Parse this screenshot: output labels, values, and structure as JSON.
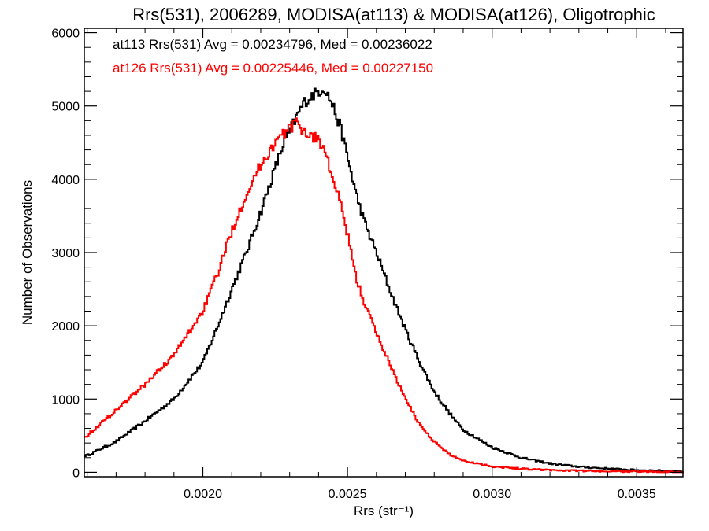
{
  "chart_data": {
    "type": "line",
    "step": true,
    "title": "Rrs(531), 2006289, MODISA(at113) & MODISA(at126), Oligotrophic",
    "xlabel": "Rrs (str⁻¹)",
    "ylabel": "Number of Observations",
    "xlim": [
      0.00159,
      0.00366
    ],
    "ylim": [
      -60,
      6060
    ],
    "x_ticks": [
      0.002,
      0.0025,
      0.003,
      0.0035
    ],
    "x_tick_labels": [
      "0.0020",
      "0.0025",
      "0.0030",
      "0.0035"
    ],
    "y_ticks": [
      0,
      1000,
      2000,
      3000,
      4000,
      5000,
      6000
    ],
    "y_tick_labels": [
      "0",
      "1000",
      "2000",
      "3000",
      "4000",
      "5000",
      "6000"
    ],
    "grid": false,
    "annotations": [
      {
        "text": "at113 Rrs(531) Avg = 0.00234796, Med = 0.00236022",
        "color": "#000000"
      },
      {
        "text": "at126 Rrs(531) Avg = 0.00225446, Med = 0.00227150",
        "color": "#ff0000"
      }
    ],
    "series": [
      {
        "color": "#000000",
        "x": [
          0.0016,
          0.0017,
          0.0018,
          0.0019,
          0.002,
          0.00205,
          0.0021,
          0.00215,
          0.0022,
          0.00225,
          0.00228,
          0.0023,
          0.00233,
          0.00235,
          0.00238,
          0.0024,
          0.00242,
          0.00245,
          0.00248,
          0.0025,
          0.00253,
          0.00256,
          0.0026,
          0.00265,
          0.0027,
          0.00275,
          0.0028,
          0.00285,
          0.0029,
          0.003,
          0.0031,
          0.0032,
          0.0033,
          0.0034,
          0.0035,
          0.00366
        ],
        "y": [
          230,
          420,
          700,
          1000,
          1500,
          1980,
          2500,
          3000,
          3550,
          4150,
          4500,
          4650,
          4900,
          5050,
          5150,
          5200,
          5250,
          5000,
          4650,
          4300,
          3800,
          3400,
          3000,
          2450,
          1950,
          1500,
          1100,
          820,
          580,
          340,
          200,
          120,
          75,
          50,
          30,
          15
        ]
      },
      {
        "color": "#ff0000",
        "x": [
          0.0016,
          0.0017,
          0.0018,
          0.0019,
          0.002,
          0.00205,
          0.0021,
          0.00215,
          0.0022,
          0.00225,
          0.00228,
          0.0023,
          0.00233,
          0.00235,
          0.00238,
          0.0024,
          0.00242,
          0.00245,
          0.00248,
          0.0025,
          0.00253,
          0.00256,
          0.0026,
          0.00265,
          0.0027,
          0.00275,
          0.0028,
          0.00285,
          0.0029,
          0.003,
          0.0031,
          0.0032,
          0.0033,
          0.0034,
          0.0035,
          0.00366
        ],
        "y": [
          500,
          850,
          1200,
          1600,
          2200,
          2700,
          3300,
          3800,
          4200,
          4500,
          4620,
          4700,
          4780,
          4650,
          4580,
          4550,
          4400,
          4000,
          3600,
          3250,
          2650,
          2300,
          1900,
          1450,
          1000,
          650,
          420,
          250,
          160,
          80,
          50,
          30,
          20,
          15,
          10,
          5
        ]
      }
    ]
  }
}
